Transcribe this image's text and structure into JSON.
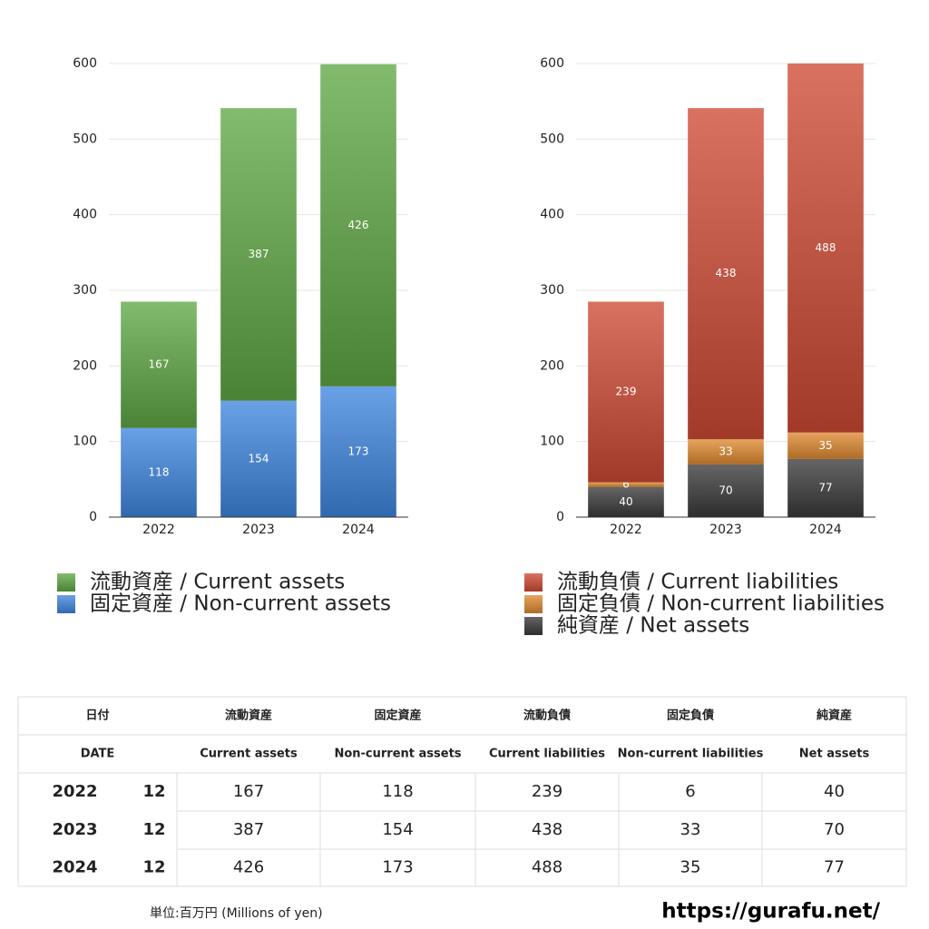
{
  "chart_data": [
    {
      "type": "stacked-bar",
      "categories": [
        "2022",
        "2023",
        "2024"
      ],
      "series": [
        {
          "name": "固定資産 / Non-current assets",
          "color": "#3f86e0",
          "values": [
            118,
            154,
            173
          ]
        },
        {
          "name": "流動資産 / Current assets",
          "color": "#5fa844",
          "values": [
            167,
            387,
            426
          ]
        }
      ],
      "ylim": [
        0,
        600
      ],
      "yticks": [
        0,
        100,
        200,
        300,
        400,
        500,
        600
      ],
      "grid": true
    },
    {
      "type": "stacked-bar",
      "categories": [
        "2022",
        "2023",
        "2024"
      ],
      "series": [
        {
          "name": "純資産 / Net assets",
          "color": "#3a3a3a",
          "values": [
            40,
            70,
            77
          ]
        },
        {
          "name": "固定負債 / Non-current liabilities",
          "color": "#e08a30",
          "values": [
            6,
            33,
            35
          ]
        },
        {
          "name": "流動負債 / Current liabilities",
          "color": "#cf4a34",
          "values": [
            239,
            438,
            488
          ]
        }
      ],
      "ylim": [
        0,
        600
      ],
      "yticks": [
        0,
        100,
        200,
        300,
        400,
        500,
        600
      ],
      "grid": true
    }
  ],
  "table": {
    "header": [
      [
        "日付",
        "流動資産",
        "固定資産",
        "流動負債",
        "固定負債",
        "純資産"
      ],
      [
        "DATE",
        "Current assets",
        "Non-current assets",
        "Current liabilities",
        "Non-current liabilities",
        "Net assets"
      ]
    ],
    "rows": [
      [
        2022,
        12,
        167,
        118,
        239,
        6,
        40
      ],
      [
        2023,
        12,
        387,
        154,
        438,
        33,
        70
      ],
      [
        2024,
        12,
        426,
        173,
        488,
        35,
        77
      ]
    ]
  },
  "footer": {
    "unit": "単位:百万円 (Millions of yen)",
    "url": "https://gurafu.net/"
  }
}
